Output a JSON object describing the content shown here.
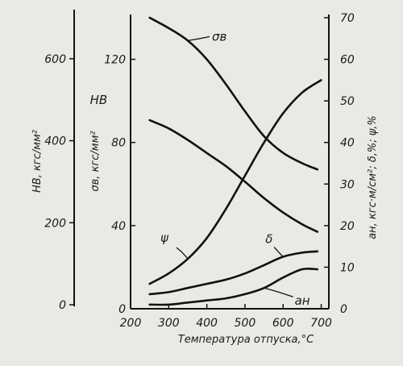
{
  "chart_data": {
    "type": "line",
    "xlabel": "Температура отпуска,°С",
    "x_ticks": [
      200,
      300,
      400,
      500,
      600,
      700
    ],
    "xlim": [
      200,
      720
    ],
    "axes": {
      "hb": {
        "label": "HB, кгс/мм²",
        "ticks": [
          0,
          200,
          400,
          600
        ],
        "lim": [
          0,
          700
        ]
      },
      "sigma": {
        "label": "σв, кгс/мм²",
        "ticks": [
          0,
          40,
          80,
          120
        ],
        "lim": [
          0,
          140
        ]
      },
      "right": {
        "label": "ан, кгс·м/см²; δ,%; ψ,%",
        "ticks": [
          0,
          10,
          20,
          30,
          40,
          50,
          60,
          70
        ],
        "lim": [
          0,
          70
        ]
      }
    },
    "series": [
      {
        "name": "σв",
        "axis": "sigma",
        "x": [
          250,
          300,
          350,
          400,
          450,
          500,
          550,
          600,
          650,
          690
        ],
        "y": [
          140,
          135,
          129,
          120,
          108,
          95,
          83,
          75,
          70,
          67
        ]
      },
      {
        "name": "HB",
        "axis": "hb",
        "x": [
          250,
          300,
          350,
          400,
          450,
          500,
          550,
          600,
          650,
          690
        ],
        "y": [
          450,
          430,
          402,
          370,
          338,
          300,
          260,
          225,
          196,
          178
        ]
      },
      {
        "name": "ψ",
        "axis": "right",
        "x": [
          250,
          300,
          350,
          400,
          450,
          500,
          550,
          600,
          650,
          700
        ],
        "y": [
          6,
          8.5,
          12,
          17,
          24,
          32,
          40,
          47,
          52,
          55
        ]
      },
      {
        "name": "δ",
        "axis": "right",
        "x": [
          250,
          300,
          350,
          400,
          450,
          500,
          550,
          600,
          650,
          690
        ],
        "y": [
          3.5,
          4,
          5,
          6,
          7,
          8.5,
          10.5,
          12.5,
          13.5,
          13.8
        ]
      },
      {
        "name": "ан",
        "axis": "right",
        "x": [
          250,
          300,
          350,
          400,
          450,
          500,
          550,
          600,
          650,
          690
        ],
        "y": [
          1,
          1,
          1.5,
          2,
          2.5,
          3.5,
          5,
          7.5,
          9.5,
          9.5
        ]
      }
    ]
  }
}
